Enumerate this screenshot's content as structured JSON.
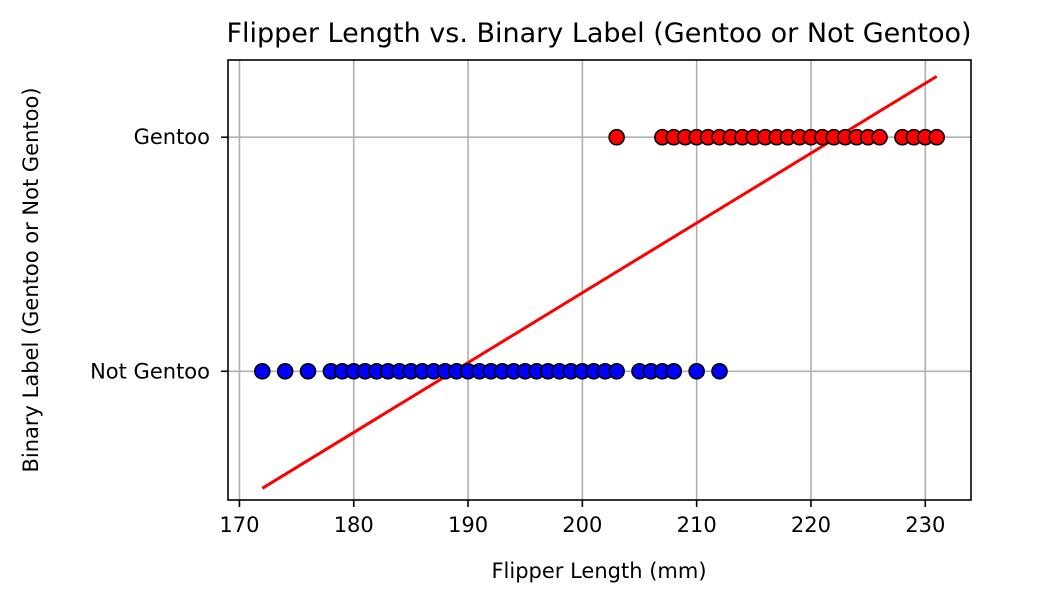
{
  "chart_data": {
    "type": "scatter",
    "title": "Flipper Length vs. Binary Label (Gentoo or Not Gentoo)",
    "xlabel": "Flipper Length (mm)",
    "ylabel": "Binary Label (Gentoo or Not Gentoo)",
    "xlim": [
      169,
      234
    ],
    "ylim": [
      -0.55,
      1.33
    ],
    "x_ticks": [
      170,
      180,
      190,
      200,
      210,
      220,
      230
    ],
    "y_ticks": [
      {
        "value": 0,
        "label": "Not Gentoo"
      },
      {
        "value": 1,
        "label": "Gentoo"
      }
    ],
    "grid": true,
    "series": [
      {
        "label_value": 0,
        "color": "#0000ff",
        "edge_color": "#000000",
        "x": [
          172,
          174,
          176,
          178,
          179,
          180,
          181,
          182,
          183,
          184,
          185,
          186,
          187,
          188,
          189,
          190,
          191,
          192,
          193,
          194,
          195,
          196,
          197,
          198,
          199,
          200,
          201,
          202,
          203,
          205,
          206,
          207,
          208,
          210,
          212
        ]
      },
      {
        "label_value": 1,
        "color": "#ff0000",
        "edge_color": "#000000",
        "x": [
          203,
          207,
          208,
          209,
          210,
          211,
          212,
          213,
          214,
          215,
          216,
          217,
          218,
          219,
          220,
          221,
          222,
          223,
          224,
          225,
          226,
          228,
          229,
          230,
          231
        ]
      }
    ],
    "fit_line": {
      "color": "#ff0000",
      "points": [
        [
          172,
          -0.5
        ],
        [
          231,
          1.26
        ]
      ]
    }
  }
}
